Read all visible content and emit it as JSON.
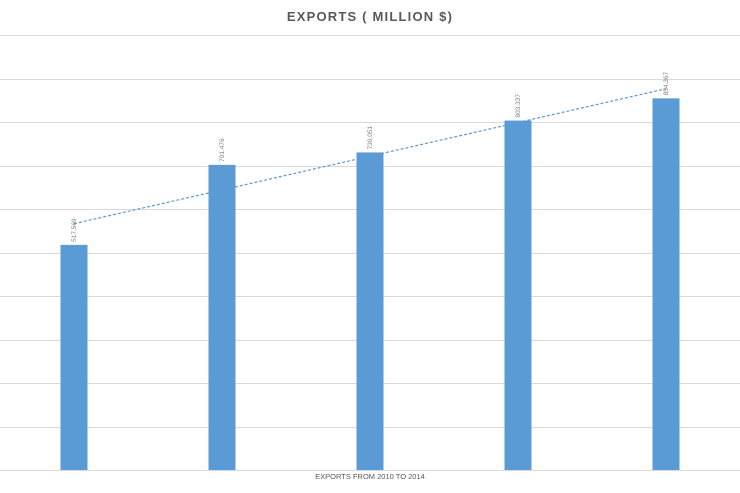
{
  "chart_data": {
    "type": "bar",
    "title": "EXPORTS ( MILLION $)",
    "xlabel": "EXPORTS FROM 2010 TO 2014",
    "ylabel": "",
    "categories": [
      "",
      "",
      "",
      "",
      ""
    ],
    "values": [
      517.569,
      701.476,
      730.051,
      803.337,
      854.367
    ],
    "data_labels": [
      "517.569",
      "701.476",
      "730.051",
      "803.337",
      "854.367"
    ],
    "ylim": [
      0,
      1000
    ],
    "grid": true,
    "trendline": "linear",
    "colors": {
      "bar": "#5b9bd5",
      "trendline": "#5b9bd5",
      "grid": "#d9d9d9"
    }
  }
}
